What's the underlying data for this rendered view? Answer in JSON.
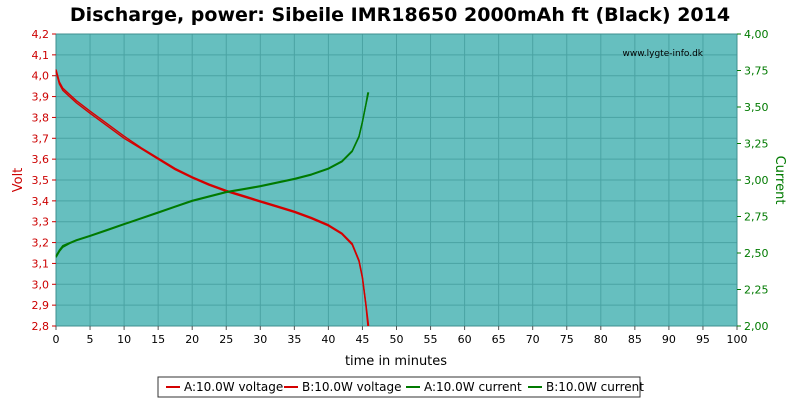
{
  "chart_data": {
    "type": "line",
    "title": "Discharge, power: Sibeile IMR18650 2000mAh ft (Black) 2014",
    "watermark": "www.lygte-info.dk",
    "xlabel": "time in minutes",
    "ylabel_left": "Volt",
    "ylabel_right": "Current",
    "xlim": [
      0,
      100
    ],
    "ylim_left": [
      2.8,
      4.2
    ],
    "ylim_right": [
      2.0,
      4.0
    ],
    "x_ticks": [
      0,
      5,
      10,
      15,
      20,
      25,
      30,
      35,
      40,
      45,
      50,
      55,
      60,
      65,
      70,
      75,
      80,
      85,
      90,
      95,
      100
    ],
    "y_ticks_left": [
      "2,8",
      "2,9",
      "3,0",
      "3,1",
      "3,2",
      "3,3",
      "3,4",
      "3,5",
      "3,6",
      "3,7",
      "3,8",
      "3,9",
      "4,0",
      "4,1",
      "4,2"
    ],
    "y_ticks_right": [
      "2,00",
      "2,25",
      "2,50",
      "2,75",
      "3,00",
      "3,25",
      "3,50",
      "3,75",
      "4,00"
    ],
    "grid": true,
    "legend_position": "bottom",
    "colors": {
      "plot_background": "#66bfbf",
      "grid": "#4aa3a3",
      "voltage": "#d40000",
      "current": "#007a00",
      "left_axis": "#cc0000",
      "right_axis": "#007a00"
    },
    "series": [
      {
        "name": "A:10.0W voltage",
        "axis": "left",
        "x": [
          0,
          0.5,
          1,
          2,
          3,
          5,
          7.5,
          10,
          12.5,
          15,
          17.5,
          20,
          22.5,
          25,
          27.5,
          30,
          32.5,
          35,
          37.5,
          40,
          42,
          43.5,
          44.5,
          45,
          45.5,
          45.8
        ],
        "y": [
          4.02,
          3.96,
          3.93,
          3.9,
          3.87,
          3.82,
          3.76,
          3.7,
          3.65,
          3.6,
          3.55,
          3.51,
          3.475,
          3.445,
          3.42,
          3.395,
          3.37,
          3.345,
          3.315,
          3.28,
          3.24,
          3.19,
          3.11,
          3.03,
          2.9,
          2.8
        ]
      },
      {
        "name": "B:10.0W voltage",
        "axis": "left",
        "x": [
          0,
          0.5,
          1,
          2,
          3,
          5,
          7.5,
          10,
          12.5,
          15,
          17.5,
          20,
          22.5,
          25,
          27.5,
          30,
          32.5,
          35,
          37.5,
          40,
          42,
          43.5,
          44.5,
          45,
          45.5,
          45.9
        ],
        "y": [
          4.03,
          3.97,
          3.94,
          3.91,
          3.88,
          3.83,
          3.77,
          3.71,
          3.655,
          3.605,
          3.555,
          3.515,
          3.48,
          3.45,
          3.425,
          3.4,
          3.375,
          3.35,
          3.32,
          3.285,
          3.245,
          3.195,
          3.115,
          3.035,
          2.905,
          2.8
        ]
      },
      {
        "name": "A:10.0W current",
        "axis": "right",
        "x": [
          0,
          0.5,
          1,
          2,
          3,
          5,
          7.5,
          10,
          12.5,
          15,
          17.5,
          20,
          22.5,
          25,
          27.5,
          30,
          32.5,
          35,
          37.5,
          40,
          42,
          43.5,
          44.5,
          45,
          45.5,
          45.8
        ],
        "y": [
          2.48,
          2.52,
          2.55,
          2.57,
          2.59,
          2.62,
          2.66,
          2.7,
          2.74,
          2.78,
          2.82,
          2.86,
          2.89,
          2.92,
          2.94,
          2.96,
          2.985,
          3.01,
          3.04,
          3.08,
          3.13,
          3.2,
          3.3,
          3.4,
          3.52,
          3.6
        ]
      },
      {
        "name": "B:10.0W current",
        "axis": "right",
        "x": [
          0,
          0.5,
          1,
          2,
          3,
          5,
          7.5,
          10,
          12.5,
          15,
          17.5,
          20,
          22.5,
          25,
          27.5,
          30,
          32.5,
          35,
          37.5,
          40,
          42,
          43.5,
          44.5,
          45,
          45.5,
          45.9
        ],
        "y": [
          2.47,
          2.51,
          2.54,
          2.565,
          2.585,
          2.615,
          2.655,
          2.695,
          2.735,
          2.775,
          2.815,
          2.855,
          2.885,
          2.915,
          2.935,
          2.955,
          2.98,
          3.005,
          3.035,
          3.075,
          3.125,
          3.195,
          3.295,
          3.395,
          3.515,
          3.6
        ]
      }
    ]
  }
}
